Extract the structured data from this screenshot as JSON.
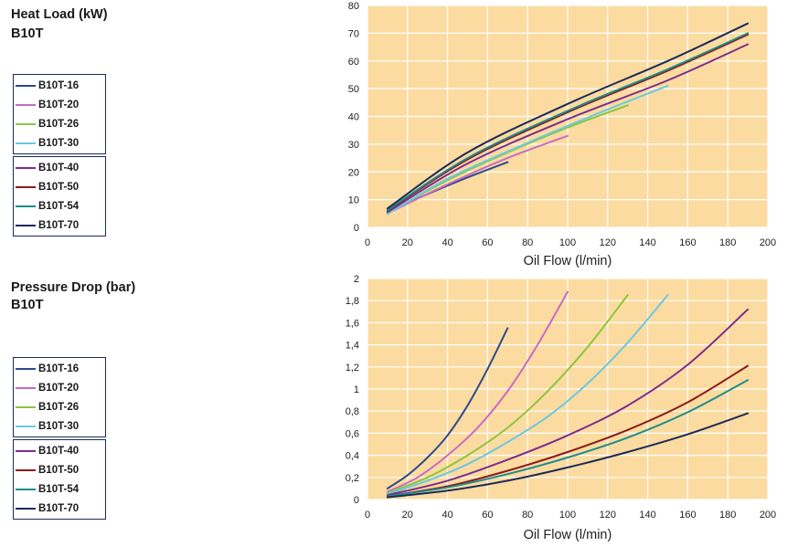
{
  "charts": [
    {
      "heading": "Heat Load (kW)",
      "subheading": "B10T",
      "legend": [
        [
          "B10T-16",
          "B10T-20",
          "B10T-26",
          "B10T-30"
        ],
        [
          "B10T-40",
          "B10T-50",
          "B10T-54",
          "B10T-70"
        ]
      ]
    },
    {
      "heading": "Pressure Drop (bar)",
      "subheading": "B10T",
      "legend": [
        [
          "B10T-16",
          "B10T-20",
          "B10T-26",
          "B10T-30"
        ],
        [
          "B10T-40",
          "B10T-50",
          "B10T-54",
          "B10T-70"
        ]
      ]
    }
  ],
  "colors": {
    "plot_bg": "#FBDBA0",
    "grid": "#ffffff",
    "B10T-16": "#2E4A8C",
    "B10T-20": "#C86CC4",
    "B10T-26": "#8CC63F",
    "B10T-30": "#6CC8E0",
    "B10T-40": "#7B2D8E",
    "B10T-50": "#8B1A1A",
    "B10T-54": "#1E8C8C",
    "B10T-70": "#1C2B5A"
  },
  "chart_data": [
    {
      "type": "line",
      "title": "Heat Load (kW)",
      "xlabel": "Oil Flow (l/min)",
      "ylabel": "",
      "xlim": [
        0,
        200
      ],
      "ylim": [
        0,
        80
      ],
      "xticks": [
        "0",
        "20",
        "40",
        "60",
        "80",
        "100",
        "120",
        "140",
        "160",
        "180",
        "200"
      ],
      "yticks": [
        "0",
        "10",
        "20",
        "30",
        "40",
        "50",
        "60",
        "70",
        "80"
      ],
      "grid": true,
      "legend_position": "left",
      "series": [
        {
          "name": "B10T-16",
          "x": [
            10,
            30,
            50,
            70
          ],
          "y": [
            5.5,
            12,
            18,
            23.5
          ]
        },
        {
          "name": "B10T-20",
          "x": [
            10,
            40,
            70,
            100
          ],
          "y": [
            5,
            15.5,
            25,
            33
          ]
        },
        {
          "name": "B10T-26",
          "x": [
            10,
            40,
            70,
            100,
            130
          ],
          "y": [
            5,
            17,
            27,
            36,
            44
          ]
        },
        {
          "name": "B10T-30",
          "x": [
            10,
            40,
            80,
            120,
            150
          ],
          "y": [
            4.8,
            17.5,
            30.5,
            42.5,
            51
          ]
        },
        {
          "name": "B10T-40",
          "x": [
            10,
            50,
            100,
            150,
            190
          ],
          "y": [
            5.5,
            23,
            39,
            53,
            66
          ]
        },
        {
          "name": "B10T-50",
          "x": [
            10,
            50,
            100,
            150,
            190
          ],
          "y": [
            6,
            24.5,
            41.5,
            56.5,
            69.5
          ]
        },
        {
          "name": "B10T-54",
          "x": [
            10,
            50,
            100,
            150,
            190
          ],
          "y": [
            6.2,
            25,
            42,
            57,
            70
          ]
        },
        {
          "name": "B10T-70",
          "x": [
            10,
            50,
            100,
            150,
            190
          ],
          "y": [
            6.8,
            27,
            44.5,
            60,
            73.5
          ]
        }
      ]
    },
    {
      "type": "line",
      "title": "Pressure Drop (bar)",
      "xlabel": "Oil Flow (l/min)",
      "ylabel": "",
      "xlim": [
        0,
        200
      ],
      "ylim": [
        0,
        2
      ],
      "xticks": [
        "0",
        "20",
        "40",
        "60",
        "80",
        "100",
        "120",
        "140",
        "160",
        "180",
        "200"
      ],
      "yticks": [
        "0",
        "0,2",
        "0,4",
        "0,6",
        "0,8",
        "1",
        "1,2",
        "1,4",
        "1,6",
        "1,8",
        "2"
      ],
      "grid": true,
      "legend_position": "left",
      "series": [
        {
          "name": "B10T-16",
          "x": [
            10,
            20,
            30,
            40,
            50,
            60,
            70
          ],
          "y": [
            0.1,
            0.22,
            0.38,
            0.58,
            0.85,
            1.18,
            1.55
          ]
        },
        {
          "name": "B10T-20",
          "x": [
            10,
            25,
            40,
            55,
            70,
            85,
            100
          ],
          "y": [
            0.07,
            0.2,
            0.4,
            0.65,
            0.98,
            1.4,
            1.88
          ]
        },
        {
          "name": "B10T-26",
          "x": [
            10,
            30,
            50,
            70,
            90,
            110,
            130
          ],
          "y": [
            0.06,
            0.2,
            0.4,
            0.65,
            0.98,
            1.38,
            1.85
          ]
        },
        {
          "name": "B10T-30",
          "x": [
            10,
            30,
            50,
            70,
            90,
            110,
            130,
            150
          ],
          "y": [
            0.05,
            0.17,
            0.32,
            0.52,
            0.75,
            1.05,
            1.42,
            1.85
          ]
        },
        {
          "name": "B10T-40",
          "x": [
            10,
            40,
            70,
            100,
            130,
            160,
            190
          ],
          "y": [
            0.04,
            0.17,
            0.36,
            0.58,
            0.85,
            1.22,
            1.72
          ]
        },
        {
          "name": "B10T-50",
          "x": [
            10,
            40,
            70,
            100,
            130,
            160,
            190
          ],
          "y": [
            0.03,
            0.12,
            0.26,
            0.43,
            0.63,
            0.88,
            1.21
          ]
        },
        {
          "name": "B10T-54",
          "x": [
            10,
            40,
            70,
            100,
            130,
            160,
            190
          ],
          "y": [
            0.03,
            0.11,
            0.23,
            0.38,
            0.56,
            0.79,
            1.08
          ]
        },
        {
          "name": "B10T-70",
          "x": [
            10,
            40,
            70,
            100,
            130,
            160,
            190
          ],
          "y": [
            0.02,
            0.08,
            0.17,
            0.29,
            0.43,
            0.59,
            0.78
          ]
        }
      ]
    }
  ]
}
